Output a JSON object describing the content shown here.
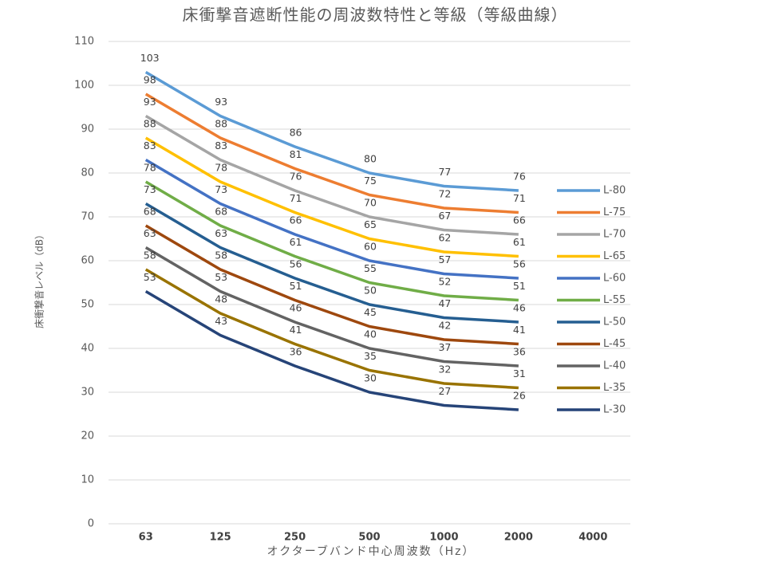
{
  "chart_data": {
    "type": "line",
    "title": "床衝撃音遮断性能の周波数特性と等級（等級曲線）",
    "x_label": "オクターブバンド中心周波数（Hz）",
    "y_label": "床衝撃音レベル（dB）",
    "categories": [
      "63",
      "125",
      "250",
      "500",
      "1000",
      "2000",
      "4000"
    ],
    "ylim": [
      0,
      110
    ],
    "yticks": [
      0,
      10,
      20,
      30,
      40,
      50,
      60,
      70,
      80,
      90,
      100,
      110
    ],
    "grid": true,
    "legend": "right",
    "series": [
      {
        "name": "L-80",
        "color": "#5b9bd5",
        "values": [
          103,
          93,
          86,
          80,
          77,
          76,
          null
        ]
      },
      {
        "name": "L-75",
        "color": "#ed7d31",
        "values": [
          98,
          88,
          81,
          75,
          72,
          71,
          null
        ]
      },
      {
        "name": "L-70",
        "color": "#a5a5a5",
        "values": [
          93,
          83,
          76,
          70,
          67,
          66,
          null
        ]
      },
      {
        "name": "L-65",
        "color": "#ffc000",
        "values": [
          88,
          78,
          71,
          65,
          62,
          61,
          null
        ]
      },
      {
        "name": "L-60",
        "color": "#4472c4",
        "values": [
          83,
          73,
          66,
          60,
          57,
          56,
          null
        ]
      },
      {
        "name": "L-55",
        "color": "#70ad47",
        "values": [
          78,
          68,
          61,
          55,
          52,
          51,
          null
        ]
      },
      {
        "name": "L-50",
        "color": "#255e91",
        "values": [
          73,
          63,
          56,
          50,
          47,
          46,
          null
        ]
      },
      {
        "name": "L-45",
        "color": "#9e480e",
        "values": [
          68,
          58,
          51,
          45,
          42,
          41,
          null
        ]
      },
      {
        "name": "L-40",
        "color": "#636363",
        "values": [
          63,
          53,
          46,
          40,
          37,
          36,
          null
        ]
      },
      {
        "name": "L-35",
        "color": "#997300",
        "values": [
          58,
          48,
          41,
          35,
          32,
          31,
          null
        ]
      },
      {
        "name": "L-30",
        "color": "#264478",
        "values": [
          53,
          43,
          36,
          30,
          27,
          26,
          null
        ]
      }
    ]
  }
}
